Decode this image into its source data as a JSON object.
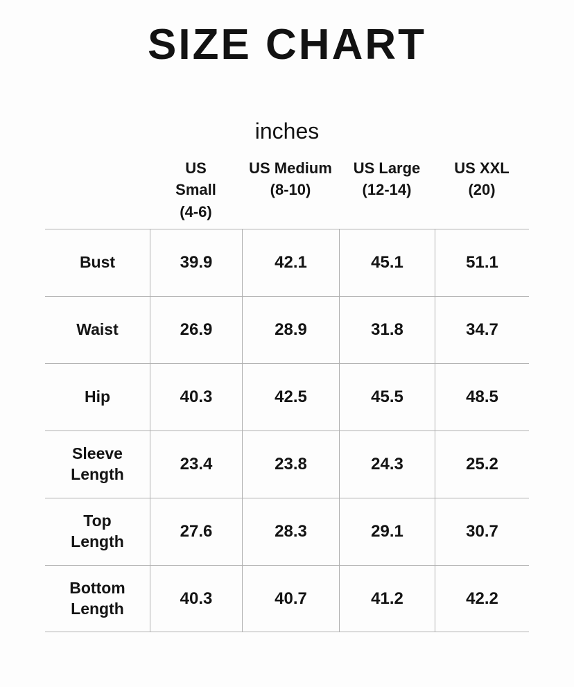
{
  "title": "SIZE CHART",
  "unit_label": "inches",
  "colors": {
    "text": "#141414",
    "grid_line": "#b0b0b0",
    "background": "#fdfdfd"
  },
  "chart_data": {
    "type": "table",
    "title": "SIZE CHART",
    "unit": "inches",
    "column_headers": [
      "US\nSmall\n(4-6)",
      "US Medium\n(8-10)",
      "US Large\n(12-14)",
      "US XXL\n(20)"
    ],
    "rows": [
      {
        "label": "Bust",
        "values": [
          "39.9",
          "42.1",
          "45.1",
          "51.1"
        ]
      },
      {
        "label": "Waist",
        "values": [
          "26.9",
          "28.9",
          "31.8",
          "34.7"
        ]
      },
      {
        "label": "Hip",
        "values": [
          "40.3",
          "42.5",
          "45.5",
          "48.5"
        ]
      },
      {
        "label": "Sleeve\nLength",
        "values": [
          "23.4",
          "23.8",
          "24.3",
          "25.2"
        ]
      },
      {
        "label": "Top\nLength",
        "values": [
          "27.6",
          "28.3",
          "29.1",
          "30.7"
        ]
      },
      {
        "label": "Bottom\nLength",
        "values": [
          "40.3",
          "40.7",
          "41.2",
          "42.2"
        ]
      }
    ]
  }
}
